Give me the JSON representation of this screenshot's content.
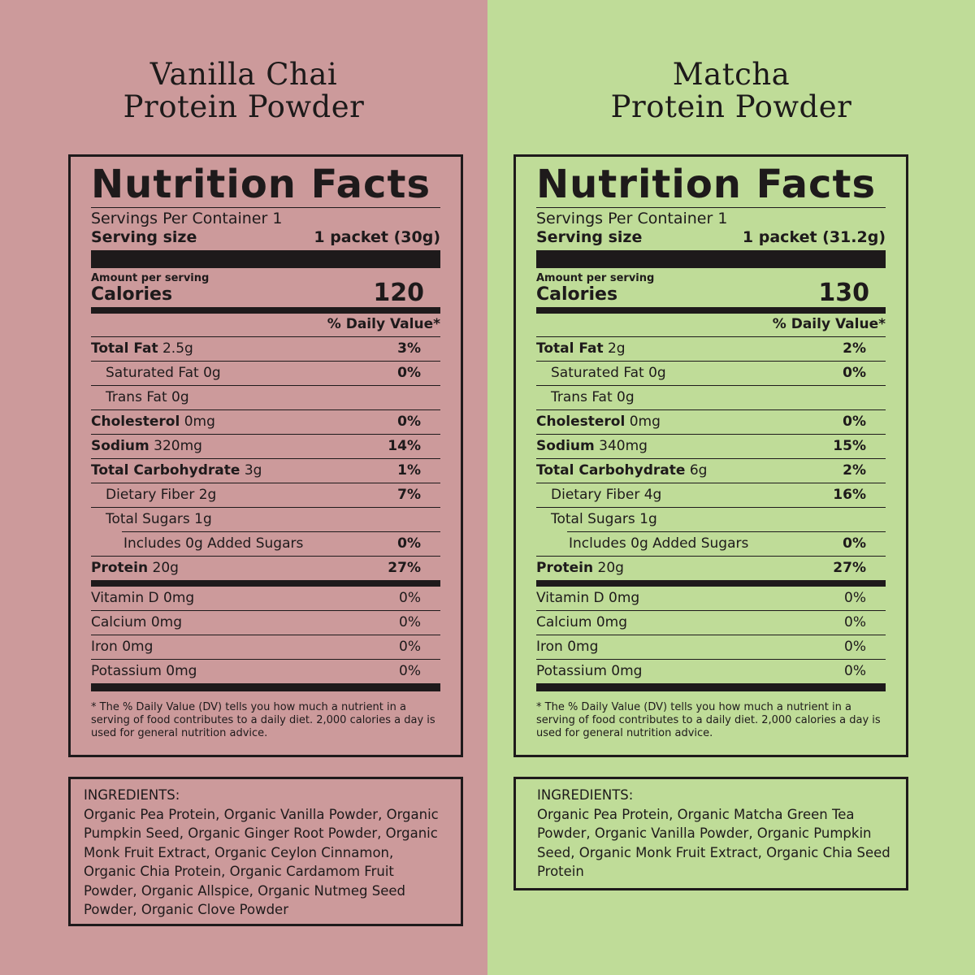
{
  "products": [
    {
      "title_line1": "Vanilla Chai",
      "title_line2": "Protein Powder",
      "background": "#cc9a9b",
      "label": {
        "heading": "Nutrition Facts",
        "servings_per_container": "Servings Per Container 1",
        "serving_size_label": "Serving size",
        "serving_size_value": "1 packet (30g)",
        "amount_per_serving": "Amount per serving",
        "calories_label": "Calories",
        "calories_value": "120",
        "dv_header": "% Daily Value*",
        "nutrients": [
          {
            "name": "Total Fat",
            "amount": "2.5g",
            "dv": "3%"
          },
          {
            "name": "Saturated Fat",
            "amount": "0g",
            "dv": "0%"
          },
          {
            "name": "Trans Fat",
            "amount": "0g",
            "dv": ""
          },
          {
            "name": "Cholesterol",
            "amount": "0mg",
            "dv": "0%"
          },
          {
            "name": "Sodium",
            "amount": "320mg",
            "dv": "14%"
          },
          {
            "name": "Total Carbohydrate",
            "amount": "3g",
            "dv": "1%"
          },
          {
            "name": "Dietary Fiber",
            "amount": "2g",
            "dv": "7%"
          },
          {
            "name": "Total Sugars",
            "amount": "1g",
            "dv": ""
          },
          {
            "name": "Includes 0g Added Sugars",
            "amount": "",
            "dv": "0%"
          },
          {
            "name": "Protein",
            "amount": "20g",
            "dv": "27%"
          }
        ],
        "vitamins": [
          {
            "name": "Vitamin D 0mg",
            "dv": "0%"
          },
          {
            "name": "Calcium 0mg",
            "dv": "0%"
          },
          {
            "name": "Iron 0mg",
            "dv": "0%"
          },
          {
            "name": "Potassium 0mg",
            "dv": "0%"
          }
        ],
        "footnote": "* The % Daily Value (DV) tells you how much a nutrient in a serving of food contributes to a daily diet. 2,000 calories a day is used for general nutrition advice."
      },
      "ingredients_heading": "INGREDIENTS:",
      "ingredients": "Organic Pea Protein, Organic Vanilla Powder, Organic Pumpkin Seed, Organic Ginger Root Powder, Organic Monk Fruit Extract, Organic Ceylon Cinnamon, Organic Chia Protein, Organic Cardamom Fruit Powder, Organic Allspice, Organic Nutmeg Seed Powder, Organic Clove Powder"
    },
    {
      "title_line1": "Matcha",
      "title_line2": "Protein Powder",
      "background": "#bfdc98",
      "label": {
        "heading": "Nutrition Facts",
        "servings_per_container": "Servings Per Container 1",
        "serving_size_label": "Serving size",
        "serving_size_value": "1 packet (31.2g)",
        "amount_per_serving": "Amount per serving",
        "calories_label": "Calories",
        "calories_value": "130",
        "dv_header": "% Daily Value*",
        "nutrients": [
          {
            "name": "Total Fat",
            "amount": "2g",
            "dv": "2%"
          },
          {
            "name": "Saturated Fat",
            "amount": "0g",
            "dv": "0%"
          },
          {
            "name": "Trans Fat",
            "amount": "0g",
            "dv": ""
          },
          {
            "name": "Cholesterol",
            "amount": "0mg",
            "dv": "0%"
          },
          {
            "name": "Sodium",
            "amount": "340mg",
            "dv": "15%"
          },
          {
            "name": "Total Carbohydrate",
            "amount": "6g",
            "dv": "2%"
          },
          {
            "name": "Dietary Fiber",
            "amount": "4g",
            "dv": "16%"
          },
          {
            "name": "Total Sugars",
            "amount": "1g",
            "dv": ""
          },
          {
            "name": "Includes 0g Added Sugars",
            "amount": "",
            "dv": "0%"
          },
          {
            "name": "Protein",
            "amount": "20g",
            "dv": "27%"
          }
        ],
        "vitamins": [
          {
            "name": "Vitamin D 0mg",
            "dv": "0%"
          },
          {
            "name": "Calcium 0mg",
            "dv": "0%"
          },
          {
            "name": "Iron 0mg",
            "dv": "0%"
          },
          {
            "name": "Potassium 0mg",
            "dv": "0%"
          }
        ],
        "footnote": "* The % Daily Value (DV) tells you how much a nutrient in a serving of food contributes to a daily diet. 2,000 calories a day is used for general nutrition advice."
      },
      "ingredients_heading": "INGREDIENTS:",
      "ingredients": "Organic Pea Protein, Organic Matcha Green Tea Powder, Organic Vanilla Powder, Organic Pumpkin Seed, Organic Monk Fruit Extract, Organic Chia Seed Protein"
    }
  ]
}
